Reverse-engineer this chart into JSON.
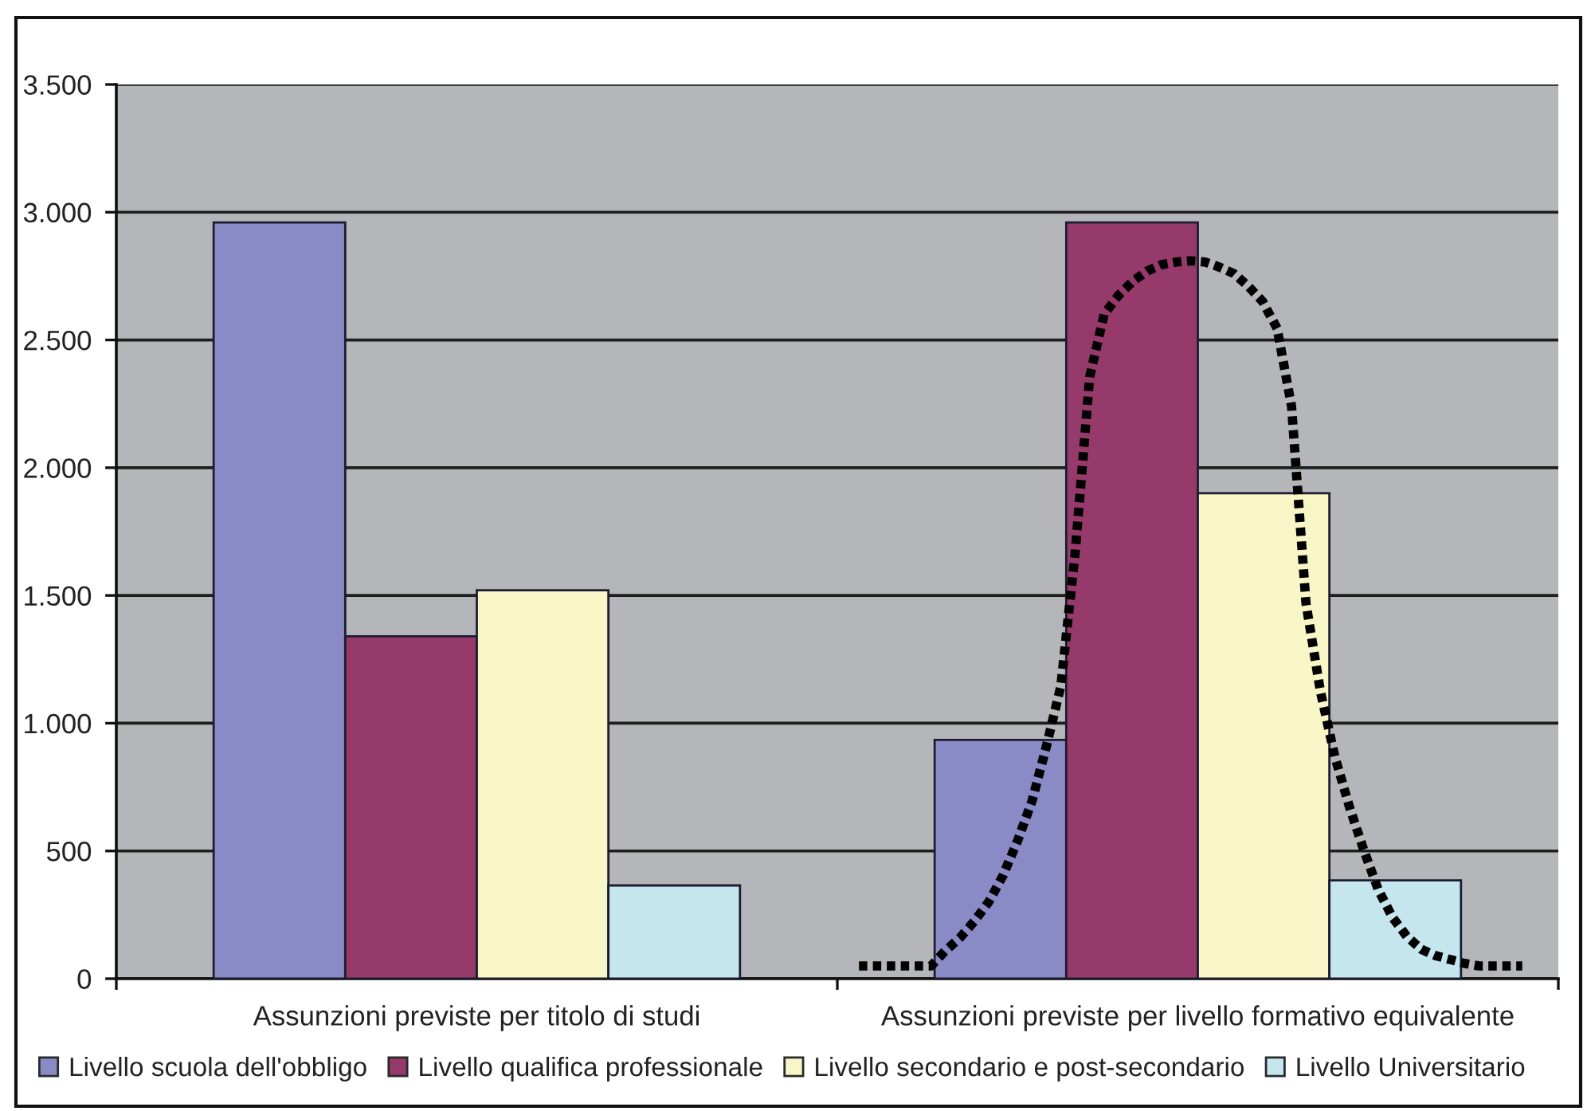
{
  "chart_data": [
    {
      "type": "bar",
      "categories": [
        "Assunzioni previste per titolo di studi",
        "Assunzioni previste per livello formativo equivalente"
      ],
      "series": [
        {
          "name": "Livello scuola dell'obbligo",
          "color": "#8a8ac6",
          "values": [
            2960,
            935
          ]
        },
        {
          "name": "Livello qualifica professionale",
          "color": "#963a6b",
          "values": [
            1340,
            2960
          ]
        },
        {
          "name": "Livello secondario e post-secondario",
          "color": "#f8f6c6",
          "values": [
            1520,
            1900
          ]
        },
        {
          "name": "Livello Universitario",
          "color": "#c6e6ef",
          "values": [
            365,
            385
          ]
        }
      ],
      "ylim": [
        0,
        3500
      ],
      "yticks": [
        0,
        500,
        {
          "value": 1000,
          "label": "1.000"
        },
        {
          "value": 1500,
          "label": "1.500"
        },
        {
          "value": 2000,
          "label": "2.000"
        },
        {
          "value": 2500,
          "label": "2.500"
        },
        {
          "value": 3000,
          "label": "3.000"
        },
        {
          "value": 3500,
          "label": "3.500"
        }
      ],
      "grid": "y",
      "legend": "bottom"
    },
    {
      "type": "line",
      "categories": [
        null,
        null,
        null,
        null,
        null,
        null,
        null,
        null,
        null,
        null,
        null,
        null,
        null,
        null,
        null,
        null,
        null,
        null,
        null,
        null,
        null,
        null,
        null,
        null,
        null,
        null,
        null,
        null,
        null,
        null,
        null,
        null,
        null,
        null,
        null,
        null,
        null,
        null,
        null,
        null,
        null,
        null,
        null,
        null,
        null,
        null,
        null,
        null,
        null,
        null,
        null,
        null,
        null,
        null,
        null,
        null,
        null,
        null,
        null,
        null,
        null,
        null,
        null,
        null,
        null,
        null,
        null,
        null,
        null,
        null,
        null,
        null,
        null,
        null,
        null,
        null,
        null,
        null,
        null,
        null,
        null,
        null,
        null,
        null,
        null,
        null,
        null,
        null,
        null,
        null,
        null,
        null,
        null,
        null,
        null,
        null,
        null,
        null,
        null,
        null
      ],
      "series": [
        {
          "color": "#000000",
          "values": [
            null,
            null,
            null,
            null,
            null,
            null,
            null,
            null,
            null,
            null,
            null,
            null,
            null,
            null,
            null,
            null,
            null,
            null,
            null,
            null,
            null,
            null,
            null,
            null,
            null,
            null,
            null,
            null,
            null,
            null,
            null,
            null,
            null,
            null,
            null,
            null,
            null,
            null,
            null,
            null,
            null,
            null,
            null,
            null,
            null,
            null,
            null,
            null,
            null,
            null,
            null,
            50,
            50,
            50,
            50,
            50,
            50,
            110,
            160,
            225,
            300,
            405,
            540,
            695,
            910,
            1145,
            1670,
            2355,
            2600,
            2675,
            2730,
            2770,
            2795,
            2805,
            2810,
            2805,
            2785,
            2760,
            2710,
            2650,
            2545,
            2240,
            1470,
            1125,
            870,
            675,
            505,
            350,
            240,
            165,
            115,
            90,
            75,
            60,
            50,
            50,
            50,
            50,
            null,
            null
          ]
        }
      ],
      "ylim": [
        0,
        3500
      ],
      "tick_labels": false,
      "line_style": "dotted",
      "marker": "none"
    }
  ]
}
